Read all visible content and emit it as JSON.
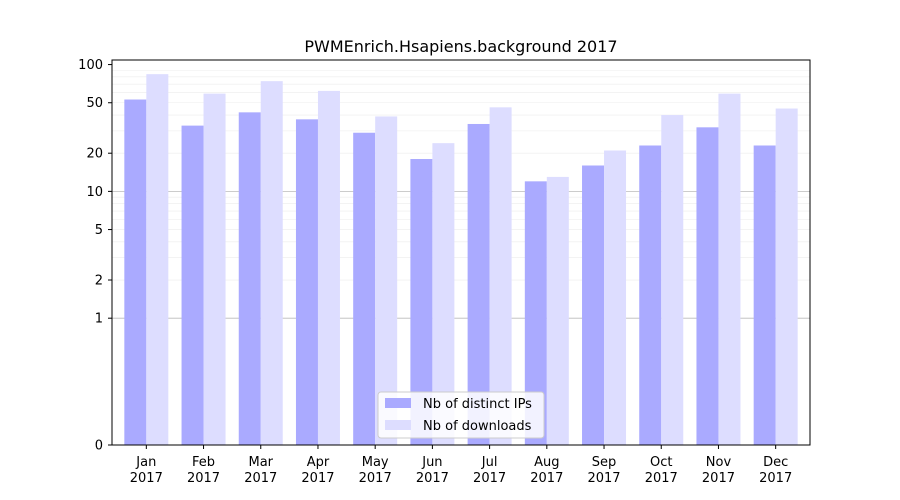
{
  "chart_data": {
    "type": "bar",
    "title": "PWMEnrich.Hsapiens.background 2017",
    "xlabel": "",
    "ylabel": "",
    "y_scale": "symlog",
    "ylim": [
      0,
      100
    ],
    "y_ticks": [
      0,
      1,
      2,
      5,
      10,
      20,
      50,
      100
    ],
    "grid": "horizontal",
    "legend_position": "bottom-center",
    "categories": [
      [
        "Jan",
        "2017"
      ],
      [
        "Feb",
        "2017"
      ],
      [
        "Mar",
        "2017"
      ],
      [
        "Apr",
        "2017"
      ],
      [
        "May",
        "2017"
      ],
      [
        "Jun",
        "2017"
      ],
      [
        "Jul",
        "2017"
      ],
      [
        "Aug",
        "2017"
      ],
      [
        "Sep",
        "2017"
      ],
      [
        "Oct",
        "2017"
      ],
      [
        "Nov",
        "2017"
      ],
      [
        "Dec",
        "2017"
      ]
    ],
    "series": [
      {
        "name": "Nb of distinct IPs",
        "color": "#aaaaff",
        "values": [
          53,
          33,
          42,
          37,
          29,
          18,
          34,
          12,
          16,
          23,
          32,
          23
        ]
      },
      {
        "name": "Nb of downloads",
        "color": "#ddddff",
        "values": [
          84,
          59,
          74,
          62,
          39,
          24,
          46,
          13,
          21,
          40,
          59,
          45
        ]
      }
    ]
  }
}
